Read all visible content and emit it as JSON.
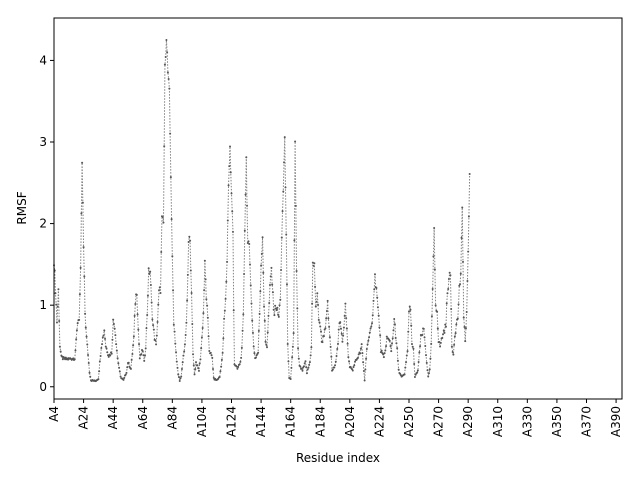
{
  "chart_data": {
    "type": "line",
    "title": "",
    "xlabel": "Residue index",
    "ylabel": "RMSF",
    "xlim": [
      0,
      384
    ],
    "ylim": [
      -0.15,
      4.52
    ],
    "grid": false,
    "legend": "none",
    "line_color": "#808080",
    "marker_color": "#555555",
    "yticks": [
      0,
      1,
      2,
      3,
      4
    ],
    "xticks": [
      {
        "pos": 0,
        "label": "A4"
      },
      {
        "pos": 20,
        "label": "A24"
      },
      {
        "pos": 40,
        "label": "A44"
      },
      {
        "pos": 60,
        "label": "A64"
      },
      {
        "pos": 80,
        "label": "A84"
      },
      {
        "pos": 100,
        "label": "A104"
      },
      {
        "pos": 120,
        "label": "A124"
      },
      {
        "pos": 140,
        "label": "A144"
      },
      {
        "pos": 160,
        "label": "A164"
      },
      {
        "pos": 180,
        "label": "A184"
      },
      {
        "pos": 200,
        "label": "A204"
      },
      {
        "pos": 220,
        "label": "A224"
      },
      {
        "pos": 240,
        "label": "A250"
      },
      {
        "pos": 260,
        "label": "A270"
      },
      {
        "pos": 280,
        "label": "A290"
      },
      {
        "pos": 300,
        "label": "A310"
      },
      {
        "pos": 320,
        "label": "A330"
      },
      {
        "pos": 340,
        "label": "A350"
      },
      {
        "pos": 360,
        "label": "A370"
      },
      {
        "pos": 380,
        "label": "A390"
      }
    ],
    "keypoints": [
      [
        0,
        1.55
      ],
      [
        1,
        1.2
      ],
      [
        2,
        0.8
      ],
      [
        3,
        1.18
      ],
      [
        4,
        0.5
      ],
      [
        5,
        0.36
      ],
      [
        7,
        0.34
      ],
      [
        10,
        0.34
      ],
      [
        14,
        0.35
      ],
      [
        15,
        0.55
      ],
      [
        16,
        0.8
      ],
      [
        17,
        0.85
      ],
      [
        18,
        1.4
      ],
      [
        19,
        2.75
      ],
      [
        20,
        1.7
      ],
      [
        21,
        0.9
      ],
      [
        22,
        0.6
      ],
      [
        23,
        0.4
      ],
      [
        24,
        0.18
      ],
      [
        25,
        0.08
      ],
      [
        28,
        0.07
      ],
      [
        30,
        0.1
      ],
      [
        32,
        0.5
      ],
      [
        34,
        0.7
      ],
      [
        35,
        0.5
      ],
      [
        37,
        0.38
      ],
      [
        39,
        0.42
      ],
      [
        40,
        0.8
      ],
      [
        41,
        0.75
      ],
      [
        43,
        0.35
      ],
      [
        45,
        0.12
      ],
      [
        47,
        0.08
      ],
      [
        49,
        0.18
      ],
      [
        50,
        0.3
      ],
      [
        52,
        0.22
      ],
      [
        54,
        0.6
      ],
      [
        55,
        1.05
      ],
      [
        56,
        1.18
      ],
      [
        57,
        0.7
      ],
      [
        58,
        0.35
      ],
      [
        60,
        0.45
      ],
      [
        61,
        0.3
      ],
      [
        62,
        0.5
      ],
      [
        63,
        0.9
      ],
      [
        64,
        1.4
      ],
      [
        65,
        1.42
      ],
      [
        66,
        1.0
      ],
      [
        67,
        0.75
      ],
      [
        68,
        0.6
      ],
      [
        69,
        0.5
      ],
      [
        70,
        0.8
      ],
      [
        71,
        1.15
      ],
      [
        72,
        1.2
      ],
      [
        73,
        2.05
      ],
      [
        74,
        2.0
      ],
      [
        75,
        3.9
      ],
      [
        76,
        4.3
      ],
      [
        77,
        3.85
      ],
      [
        78,
        3.6
      ],
      [
        79,
        2.6
      ],
      [
        80,
        1.55
      ],
      [
        81,
        0.8
      ],
      [
        83,
        0.3
      ],
      [
        84,
        0.15
      ],
      [
        85,
        0.08
      ],
      [
        86,
        0.12
      ],
      [
        87,
        0.3
      ],
      [
        89,
        0.6
      ],
      [
        90,
        1.0
      ],
      [
        91,
        1.75
      ],
      [
        92,
        1.85
      ],
      [
        93,
        1.1
      ],
      [
        94,
        0.4
      ],
      [
        95,
        0.15
      ],
      [
        96,
        0.3
      ],
      [
        98,
        0.2
      ],
      [
        99,
        0.35
      ],
      [
        100,
        0.6
      ],
      [
        101,
        0.9
      ],
      [
        102,
        1.5
      ],
      [
        103,
        1.1
      ],
      [
        104,
        0.8
      ],
      [
        105,
        0.45
      ],
      [
        107,
        0.35
      ],
      [
        108,
        0.1
      ],
      [
        110,
        0.08
      ],
      [
        112,
        0.12
      ],
      [
        114,
        0.4
      ],
      [
        115,
        0.8
      ],
      [
        116,
        1.05
      ],
      [
        117,
        1.55
      ],
      [
        118,
        2.5
      ],
      [
        119,
        2.93
      ],
      [
        120,
        2.35
      ],
      [
        121,
        1.9
      ],
      [
        121.6,
        0.8
      ],
      [
        122,
        0.28
      ],
      [
        124,
        0.22
      ],
      [
        126,
        0.3
      ],
      [
        127,
        0.45
      ],
      [
        128,
        0.85
      ],
      [
        129,
        1.95
      ],
      [
        130,
        2.8
      ],
      [
        131,
        1.75
      ],
      [
        132,
        1.7
      ],
      [
        133,
        1.3
      ],
      [
        134,
        0.8
      ],
      [
        135,
        0.5
      ],
      [
        136,
        0.35
      ],
      [
        138,
        0.42
      ],
      [
        139,
        0.9
      ],
      [
        140,
        1.5
      ],
      [
        141,
        1.85
      ],
      [
        142,
        1.0
      ],
      [
        143,
        0.55
      ],
      [
        144,
        0.5
      ],
      [
        146,
        1.2
      ],
      [
        147,
        1.45
      ],
      [
        148,
        1.1
      ],
      [
        149,
        0.9
      ],
      [
        150,
        1.0
      ],
      [
        152,
        0.85
      ],
      [
        153,
        1.1
      ],
      [
        154,
        1.8
      ],
      [
        155,
        2.4
      ],
      [
        156,
        3.07
      ],
      [
        157,
        1.85
      ],
      [
        158,
        0.55
      ],
      [
        159,
        0.1
      ],
      [
        160,
        0.09
      ],
      [
        161,
        0.35
      ],
      [
        162,
        0.65
      ],
      [
        163,
        2.98
      ],
      [
        164,
        1.4
      ],
      [
        165,
        0.45
      ],
      [
        166,
        0.25
      ],
      [
        168,
        0.2
      ],
      [
        170,
        0.3
      ],
      [
        171,
        0.17
      ],
      [
        173,
        0.3
      ],
      [
        174,
        0.5
      ],
      [
        175,
        1.5
      ],
      [
        176,
        1.48
      ],
      [
        177,
        1.0
      ],
      [
        178,
        1.1
      ],
      [
        179,
        0.85
      ],
      [
        180,
        0.75
      ],
      [
        181,
        0.55
      ],
      [
        182,
        0.6
      ],
      [
        184,
        0.8
      ],
      [
        185,
        1.0
      ],
      [
        186,
        0.7
      ],
      [
        187,
        0.5
      ],
      [
        188,
        0.2
      ],
      [
        190,
        0.25
      ],
      [
        192,
        0.55
      ],
      [
        193,
        0.8
      ],
      [
        194,
        0.7
      ],
      [
        195,
        0.55
      ],
      [
        196,
        0.75
      ],
      [
        197,
        1.05
      ],
      [
        198,
        0.7
      ],
      [
        199,
        0.35
      ],
      [
        200,
        0.25
      ],
      [
        202,
        0.2
      ],
      [
        203,
        0.28
      ],
      [
        205,
        0.35
      ],
      [
        207,
        0.42
      ],
      [
        208,
        0.5
      ],
      [
        209,
        0.3
      ],
      [
        210,
        0.08
      ],
      [
        211,
        0.35
      ],
      [
        212,
        0.55
      ],
      [
        213,
        0.6
      ],
      [
        215,
        0.75
      ],
      [
        216,
        1.1
      ],
      [
        217,
        1.35
      ],
      [
        218,
        1.2
      ],
      [
        219,
        0.95
      ],
      [
        220,
        0.75
      ],
      [
        221,
        0.45
      ],
      [
        223,
        0.35
      ],
      [
        224,
        0.45
      ],
      [
        225,
        0.6
      ],
      [
        227,
        0.55
      ],
      [
        228,
        0.45
      ],
      [
        229,
        0.6
      ],
      [
        230,
        0.85
      ],
      [
        231,
        0.6
      ],
      [
        232,
        0.45
      ],
      [
        233,
        0.2
      ],
      [
        235,
        0.12
      ],
      [
        237,
        0.15
      ],
      [
        238,
        0.3
      ],
      [
        239,
        0.45
      ],
      [
        240,
        0.9
      ],
      [
        241,
        1.0
      ],
      [
        242,
        0.5
      ],
      [
        243,
        0.45
      ],
      [
        244,
        0.12
      ],
      [
        246,
        0.2
      ],
      [
        248,
        0.6
      ],
      [
        249,
        0.65
      ],
      [
        250,
        0.7
      ],
      [
        252,
        0.3
      ],
      [
        253,
        0.12
      ],
      [
        254,
        0.2
      ],
      [
        255,
        0.5
      ],
      [
        256,
        1.2
      ],
      [
        257,
        1.9
      ],
      [
        258,
        1.0
      ],
      [
        259,
        0.95
      ],
      [
        260,
        0.55
      ],
      [
        261,
        0.5
      ],
      [
        263,
        0.65
      ],
      [
        265,
        0.75
      ],
      [
        266,
        1.2
      ],
      [
        267,
        1.3
      ],
      [
        268,
        1.38
      ],
      [
        269,
        0.5
      ],
      [
        270,
        0.4
      ],
      [
        271,
        0.65
      ],
      [
        273,
        0.85
      ],
      [
        274,
        1.2
      ],
      [
        275,
        1.38
      ],
      [
        276,
        2.15
      ],
      [
        277,
        0.9
      ],
      [
        278,
        0.55
      ],
      [
        279,
        0.9
      ],
      [
        280,
        1.6
      ],
      [
        281,
        2.62
      ]
    ]
  }
}
